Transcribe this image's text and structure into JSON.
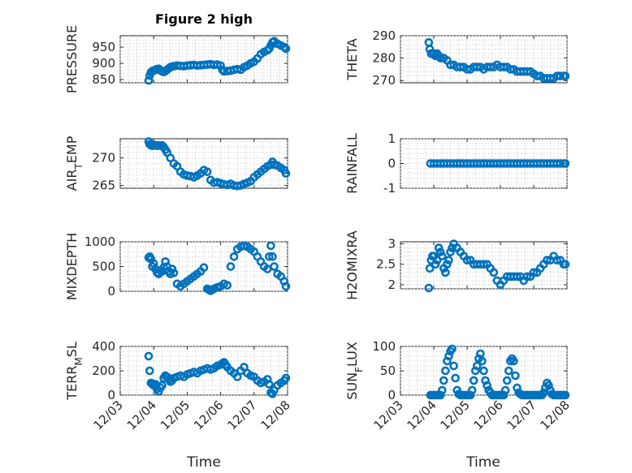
{
  "figure": {
    "title": "Figure 2 high",
    "marker_color": "#0072bd"
  },
  "chart_data": [
    {
      "type": "scatter",
      "ylabel_text": "PRESSURE",
      "xlim": [
        0,
        5
      ],
      "ylim": [
        840,
        985
      ],
      "yticks": [
        850,
        900,
        950
      ],
      "ytick_labels": [
        "850",
        "900",
        "950"
      ],
      "xticks": [
        0,
        1,
        2,
        3,
        4,
        5
      ],
      "xtick_labels": [
        "12/03",
        "12/04",
        "12/05",
        "12/06",
        "12/07",
        "12/08"
      ],
      "x": [
        0.85,
        0.88,
        0.92,
        0.96,
        1.0,
        1.05,
        1.1,
        1.15,
        1.2,
        1.25,
        1.3,
        1.35,
        1.4,
        1.45,
        1.5,
        1.55,
        1.6,
        1.7,
        1.8,
        1.9,
        2.0,
        2.1,
        2.2,
        2.3,
        2.4,
        2.5,
        2.6,
        2.7,
        2.8,
        2.9,
        3.0,
        3.05,
        3.1,
        3.2,
        3.3,
        3.4,
        3.5,
        3.6,
        3.7,
        3.8,
        3.9,
        4.0,
        4.1,
        4.2,
        4.3,
        4.4,
        4.45,
        4.5,
        4.55,
        4.6,
        4.7,
        4.8,
        4.9,
        4.95
      ],
      "y": [
        847,
        862,
        872,
        876,
        877,
        880,
        882,
        883,
        878,
        875,
        873,
        876,
        880,
        884,
        888,
        890,
        891,
        893,
        892,
        891,
        893,
        894,
        895,
        893,
        894,
        895,
        896,
        897,
        895,
        896,
        893,
        880,
        875,
        876,
        877,
        880,
        882,
        880,
        888,
        893,
        900,
        905,
        915,
        928,
        935,
        940,
        945,
        955,
        965,
        968,
        960,
        955,
        950,
        945
      ],
      "show_xtick_labels": false
    },
    {
      "type": "scatter",
      "ylabel_text": "THETA",
      "xlim": [
        0,
        5
      ],
      "ylim": [
        269,
        290
      ],
      "yticks": [
        270,
        280,
        290
      ],
      "ytick_labels": [
        "270",
        "280",
        "290"
      ],
      "xticks": [
        0,
        1,
        2,
        3,
        4,
        5
      ],
      "xtick_labels": [
        "12/03",
        "12/04",
        "12/05",
        "12/06",
        "12/07",
        "12/08"
      ],
      "x": [
        0.85,
        0.88,
        0.92,
        0.96,
        1.0,
        1.05,
        1.1,
        1.15,
        1.2,
        1.3,
        1.4,
        1.5,
        1.6,
        1.7,
        1.8,
        1.9,
        2.0,
        2.1,
        2.2,
        2.3,
        2.4,
        2.5,
        2.6,
        2.7,
        2.8,
        2.9,
        3.0,
        3.1,
        3.2,
        3.3,
        3.4,
        3.5,
        3.6,
        3.7,
        3.8,
        3.9,
        4.0,
        4.1,
        4.2,
        4.3,
        4.4,
        4.5,
        4.6,
        4.7,
        4.8,
        4.9,
        4.95
      ],
      "y": [
        287,
        284,
        282,
        282,
        282,
        281,
        282,
        281,
        280,
        280,
        279,
        277,
        277,
        276,
        276,
        276,
        275,
        275,
        276,
        276,
        276,
        275,
        276,
        276,
        276,
        277,
        276,
        276,
        276,
        275,
        275,
        274,
        274,
        274,
        274,
        274,
        273,
        272,
        272,
        271,
        271,
        271,
        271,
        272,
        272,
        272,
        272
      ],
      "show_xtick_labels": false
    },
    {
      "type": "scatter",
      "ylabel_text": "AIR_TEMP",
      "xlim": [
        0,
        5
      ],
      "ylim": [
        264.5,
        273.5
      ],
      "yticks": [
        265,
        270
      ],
      "ytick_labels": [
        "265",
        "270"
      ],
      "xticks": [
        0,
        1,
        2,
        3,
        4,
        5
      ],
      "xtick_labels": [
        "12/03",
        "12/04",
        "12/05",
        "12/06",
        "12/07",
        "12/08"
      ],
      "x": [
        0.85,
        0.88,
        0.92,
        0.96,
        1.0,
        1.05,
        1.1,
        1.15,
        1.2,
        1.25,
        1.3,
        1.35,
        1.4,
        1.5,
        1.6,
        1.7,
        1.8,
        1.9,
        2.0,
        2.1,
        2.2,
        2.3,
        2.4,
        2.5,
        2.6,
        2.7,
        2.8,
        2.9,
        3.0,
        3.1,
        3.2,
        3.3,
        3.4,
        3.5,
        3.6,
        3.7,
        3.8,
        3.9,
        4.0,
        4.1,
        4.2,
        4.3,
        4.4,
        4.5,
        4.55,
        4.6,
        4.7,
        4.8,
        4.9,
        4.95
      ],
      "y": [
        273,
        272.5,
        272.3,
        272.2,
        272.4,
        272.3,
        272.2,
        272.3,
        272.2,
        272.3,
        272.0,
        271.5,
        271.0,
        270.0,
        269.0,
        268.5,
        267.5,
        267.0,
        266.8,
        266.7,
        266.5,
        266.8,
        267.2,
        267.8,
        267.5,
        266.0,
        265.5,
        265.6,
        265.4,
        265.2,
        265.1,
        265.3,
        265.0,
        264.9,
        265.0,
        265.3,
        265.5,
        265.8,
        266.5,
        267.0,
        267.5,
        268.0,
        268.5,
        268.8,
        269.3,
        268.8,
        268.6,
        268.2,
        267.8,
        267.2
      ],
      "show_xtick_labels": false
    },
    {
      "type": "scatter",
      "ylabel_text": "RAINFALL",
      "xlim": [
        0,
        5
      ],
      "ylim": [
        -1,
        1
      ],
      "yticks": [
        -1,
        0,
        1
      ],
      "ytick_labels": [
        "-1",
        "0",
        "1"
      ],
      "xticks": [
        0,
        1,
        2,
        3,
        4,
        5
      ],
      "xtick_labels": [
        "12/03",
        "12/04",
        "12/05",
        "12/06",
        "12/07",
        "12/08"
      ],
      "x": [
        0.9,
        1.0,
        1.1,
        1.2,
        1.3,
        1.4,
        1.5,
        1.6,
        1.7,
        1.8,
        1.9,
        2.0,
        2.1,
        2.2,
        2.3,
        2.4,
        2.5,
        2.6,
        2.7,
        2.8,
        2.9,
        3.0,
        3.1,
        3.2,
        3.3,
        3.4,
        3.5,
        3.6,
        3.7,
        3.8,
        3.9,
        4.0,
        4.1,
        4.2,
        4.3,
        4.4,
        4.5,
        4.6,
        4.7,
        4.8,
        4.9,
        4.95
      ],
      "y": [
        0,
        0,
        0,
        0,
        0,
        0,
        0,
        0,
        0,
        0,
        0,
        0,
        0,
        0,
        0,
        0,
        0,
        0,
        0,
        0,
        0,
        0,
        0,
        0,
        0,
        0,
        0,
        0,
        0,
        0,
        0,
        0,
        0,
        0,
        0,
        0,
        0,
        0,
        0,
        0,
        0,
        0
      ],
      "show_xtick_labels": false
    },
    {
      "type": "scatter",
      "ylabel_text": "MIXDEPTH",
      "xlim": [
        0,
        5
      ],
      "ylim": [
        0,
        1000
      ],
      "yticks": [
        0,
        500,
        1000
      ],
      "ytick_labels": [
        "0",
        "500",
        "1000"
      ],
      "xticks": [
        0,
        1,
        2,
        3,
        4,
        5
      ],
      "xtick_labels": [
        "12/03",
        "12/04",
        "12/05",
        "12/06",
        "12/07",
        "12/08"
      ],
      "x": [
        0.85,
        0.88,
        0.92,
        0.96,
        1.0,
        1.05,
        1.1,
        1.15,
        1.2,
        1.25,
        1.3,
        1.35,
        1.4,
        1.45,
        1.5,
        1.55,
        1.6,
        1.7,
        1.8,
        1.9,
        2.0,
        2.1,
        2.2,
        2.3,
        2.4,
        2.5,
        2.6,
        2.65,
        2.7,
        2.75,
        2.8,
        2.9,
        3.0,
        3.1,
        3.2,
        3.3,
        3.4,
        3.5,
        3.6,
        3.7,
        3.8,
        3.9,
        4.0,
        4.1,
        4.2,
        4.3,
        4.4,
        4.45,
        4.5,
        4.55,
        4.6,
        4.7,
        4.8,
        4.9,
        4.95
      ],
      "y": [
        680,
        700,
        650,
        500,
        560,
        450,
        380,
        350,
        420,
        400,
        480,
        600,
        500,
        400,
        350,
        450,
        370,
        150,
        100,
        150,
        200,
        250,
        300,
        350,
        400,
        480,
        50,
        30,
        10,
        30,
        50,
        80,
        100,
        150,
        120,
        500,
        700,
        850,
        900,
        920,
        900,
        850,
        800,
        700,
        600,
        500,
        450,
        700,
        920,
        700,
        500,
        350,
        300,
        200,
        100
      ],
      "show_xtick_labels": false
    },
    {
      "type": "scatter",
      "ylabel_text": "H2OMIXRA",
      "xlim": [
        0,
        5
      ],
      "ylim": [
        1.9,
        3.05
      ],
      "yticks": [
        2,
        2.5,
        3
      ],
      "ytick_labels": [
        "2",
        "2.5",
        "3"
      ],
      "xticks": [
        0,
        1,
        2,
        3,
        4,
        5
      ],
      "xtick_labels": [
        "12/03",
        "12/04",
        "12/05",
        "12/06",
        "12/07",
        "12/08"
      ],
      "x": [
        0.85,
        0.88,
        0.92,
        0.96,
        1.0,
        1.05,
        1.1,
        1.15,
        1.2,
        1.25,
        1.3,
        1.35,
        1.4,
        1.45,
        1.5,
        1.55,
        1.6,
        1.7,
        1.8,
        1.9,
        2.0,
        2.1,
        2.2,
        2.3,
        2.4,
        2.5,
        2.6,
        2.7,
        2.8,
        2.9,
        3.0,
        3.1,
        3.2,
        3.3,
        3.4,
        3.5,
        3.6,
        3.7,
        3.8,
        3.9,
        4.0,
        4.1,
        4.2,
        4.3,
        4.4,
        4.5,
        4.6,
        4.7,
        4.8,
        4.9,
        4.95
      ],
      "y": [
        1.92,
        2.4,
        2.6,
        2.7,
        2.7,
        2.5,
        2.6,
        2.9,
        2.8,
        2.7,
        2.4,
        2.3,
        2.5,
        2.6,
        2.8,
        2.9,
        3.0,
        2.9,
        2.8,
        2.7,
        2.6,
        2.6,
        2.5,
        2.5,
        2.5,
        2.5,
        2.5,
        2.4,
        2.3,
        2.1,
        2.0,
        2.1,
        2.2,
        2.2,
        2.2,
        2.2,
        2.2,
        2.1,
        2.2,
        2.2,
        2.3,
        2.3,
        2.4,
        2.5,
        2.6,
        2.6,
        2.7,
        2.6,
        2.6,
        2.5,
        2.5
      ],
      "show_xtick_labels": false
    },
    {
      "type": "scatter",
      "ylabel_text": "TERR_MSL",
      "xlim": [
        0,
        5
      ],
      "ylim": [
        0,
        400
      ],
      "yticks": [
        0,
        200,
        400
      ],
      "ytick_labels": [
        "0",
        "200",
        "400"
      ],
      "xticks": [
        0,
        1,
        2,
        3,
        4,
        5
      ],
      "xtick_labels": [
        "12/03",
        "12/04",
        "12/05",
        "12/06",
        "12/07",
        "12/08"
      ],
      "x": [
        0.85,
        0.88,
        0.92,
        0.96,
        1.0,
        1.05,
        1.1,
        1.15,
        1.2,
        1.25,
        1.3,
        1.35,
        1.4,
        1.45,
        1.5,
        1.55,
        1.6,
        1.7,
        1.8,
        1.9,
        2.0,
        2.1,
        2.2,
        2.3,
        2.4,
        2.5,
        2.6,
        2.7,
        2.8,
        2.9,
        3.0,
        3.05,
        3.1,
        3.15,
        3.2,
        3.3,
        3.4,
        3.5,
        3.6,
        3.7,
        3.8,
        3.9,
        4.0,
        4.1,
        4.2,
        4.3,
        4.4,
        4.45,
        4.5,
        4.55,
        4.6,
        4.7,
        4.8,
        4.9,
        4.95
      ],
      "y": [
        320,
        200,
        100,
        90,
        80,
        90,
        50,
        30,
        60,
        80,
        140,
        160,
        150,
        130,
        110,
        120,
        140,
        150,
        160,
        150,
        170,
        180,
        190,
        180,
        200,
        210,
        220,
        210,
        220,
        240,
        250,
        260,
        270,
        250,
        230,
        200,
        180,
        150,
        200,
        230,
        180,
        160,
        150,
        120,
        100,
        110,
        130,
        90,
        20,
        10,
        40,
        80,
        100,
        120,
        140
      ],
      "show_xtick_labels": true
    },
    {
      "type": "scatter",
      "ylabel_text": "SUN_FLUX",
      "xlim": [
        0,
        5
      ],
      "ylim": [
        0,
        100
      ],
      "yticks": [
        0,
        50,
        100
      ],
      "ytick_labels": [
        "0",
        "50",
        "100"
      ],
      "xticks": [
        0,
        1,
        2,
        3,
        4,
        5
      ],
      "xtick_labels": [
        "12/03",
        "12/04",
        "12/05",
        "12/06",
        "12/07",
        "12/08"
      ],
      "x": [
        0.9,
        0.95,
        1.0,
        1.05,
        1.1,
        1.15,
        1.2,
        1.25,
        1.3,
        1.35,
        1.4,
        1.45,
        1.5,
        1.55,
        1.6,
        1.65,
        1.7,
        1.75,
        1.8,
        1.85,
        1.9,
        1.95,
        2.0,
        2.05,
        2.1,
        2.15,
        2.2,
        2.25,
        2.3,
        2.35,
        2.4,
        2.45,
        2.5,
        2.55,
        2.6,
        2.65,
        2.7,
        2.75,
        2.8,
        2.85,
        2.9,
        2.95,
        3.0,
        3.05,
        3.1,
        3.15,
        3.2,
        3.25,
        3.3,
        3.35,
        3.4,
        3.45,
        3.5,
        3.55,
        3.6,
        3.65,
        3.7,
        3.75,
        3.8,
        3.85,
        3.9,
        3.95,
        4.0,
        4.05,
        4.1,
        4.15,
        4.2,
        4.25,
        4.3,
        4.35,
        4.4,
        4.45,
        4.5,
        4.55,
        4.6,
        4.65,
        4.7,
        4.75,
        4.8,
        4.85,
        4.9,
        4.95
      ],
      "y": [
        0,
        0,
        0,
        0,
        0,
        0,
        0,
        10,
        30,
        50,
        70,
        80,
        90,
        95,
        60,
        35,
        10,
        2,
        0,
        0,
        0,
        0,
        0,
        0,
        0,
        10,
        30,
        50,
        60,
        75,
        85,
        70,
        50,
        30,
        20,
        10,
        5,
        0,
        0,
        0,
        0,
        0,
        0,
        0,
        0,
        10,
        30,
        50,
        70,
        75,
        70,
        40,
        15,
        5,
        2,
        0,
        0,
        0,
        0,
        0,
        0,
        0,
        0,
        0,
        0,
        0,
        0,
        0,
        5,
        15,
        25,
        20,
        10,
        2,
        0,
        0,
        0,
        0,
        0,
        0,
        0,
        0
      ],
      "show_xtick_labels": true
    }
  ],
  "axis_texts": {
    "ylabels": [
      {
        "main": "PRESSURE",
        "sub": "",
        "tail": ""
      },
      {
        "main": "THETA",
        "sub": "",
        "tail": ""
      },
      {
        "main": "AIR",
        "sub": "T",
        "tail": "EMP"
      },
      {
        "main": "RAINFALL",
        "sub": "",
        "tail": ""
      },
      {
        "main": "MIXDEPTH",
        "sub": "",
        "tail": ""
      },
      {
        "main": "H2OMIXRA",
        "sub": "",
        "tail": ""
      },
      {
        "main": "TERR",
        "sub": "M",
        "tail": "SL"
      },
      {
        "main": "SUN",
        "sub": "F",
        "tail": "LUX"
      }
    ],
    "xlabel_left": "Time",
    "xlabel_right": "Time"
  }
}
